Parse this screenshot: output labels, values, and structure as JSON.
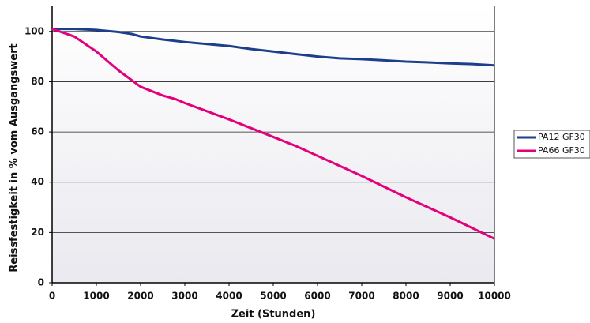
{
  "chart_data": {
    "type": "line",
    "x_label": "Zeit (Stunden)",
    "y_label": "Reissfestigkeit in % vom Ausgangswert",
    "xlim": [
      0,
      10000
    ],
    "ylim": [
      0,
      110
    ],
    "xticks": [
      0,
      1000,
      2000,
      3000,
      4000,
      5000,
      6000,
      7000,
      8000,
      9000,
      10000
    ],
    "yticks": [
      0,
      20,
      40,
      60,
      80,
      100
    ],
    "grid": true,
    "legend": "right",
    "series": [
      {
        "name": "PA12 GF30",
        "color": "#1c3f8c",
        "x": [
          0,
          500,
          1000,
          1500,
          1800,
          2000,
          2500,
          3000,
          3500,
          4000,
          4500,
          5000,
          5500,
          6000,
          6500,
          7000,
          7500,
          8000,
          8500,
          9000,
          9500,
          10000
        ],
        "values": [
          101,
          101,
          100.6,
          99.8,
          99,
          98,
          96.8,
          95.8,
          95,
          94.2,
          93,
          92,
          91,
          90,
          89.3,
          89,
          88.5,
          88,
          87.7,
          87.3,
          87,
          86.5
        ]
      },
      {
        "name": "PA66 GF30",
        "color": "#e4007d",
        "x": [
          0,
          500,
          1000,
          1500,
          2000,
          2500,
          2800,
          3000,
          4000,
          5000,
          5500,
          6000,
          7000,
          8000,
          9000,
          10000
        ],
        "values": [
          101,
          98,
          92,
          84.5,
          78,
          74.5,
          73,
          71.5,
          65,
          58,
          54.5,
          50.5,
          42.5,
          34,
          26,
          17.5
        ]
      }
    ]
  }
}
